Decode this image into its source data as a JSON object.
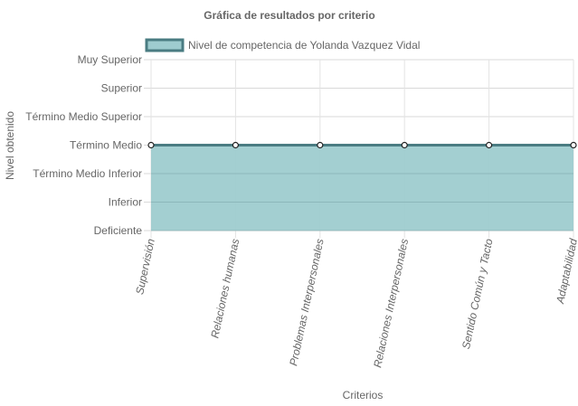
{
  "chart_data": {
    "type": "area",
    "title": "Gráfica de resultados por criterio",
    "xlabel": "Criterios",
    "ylabel": "Nivel obtenido",
    "categories": [
      "Supervisión",
      "Relaciones humanas",
      "Problemas Interpersonales",
      "Relaciones Interpersonales",
      "Sentido Común y Tacto",
      "Adaptabilidad"
    ],
    "y_levels": [
      "Deficiente",
      "Inferior",
      "Término Medio Inferior",
      "Término Medio",
      "Término Medio Superior",
      "Superior",
      "Muy Superior"
    ],
    "ylim": [
      0,
      6
    ],
    "series": [
      {
        "name": "Nivel de competencia de Yolanda  Vazquez Vidal",
        "values": [
          3,
          3,
          3,
          3,
          3,
          3
        ],
        "fill_color": "#9ecccf",
        "line_color": "#4a7c82"
      }
    ],
    "legend_position": "top",
    "grid": true
  }
}
